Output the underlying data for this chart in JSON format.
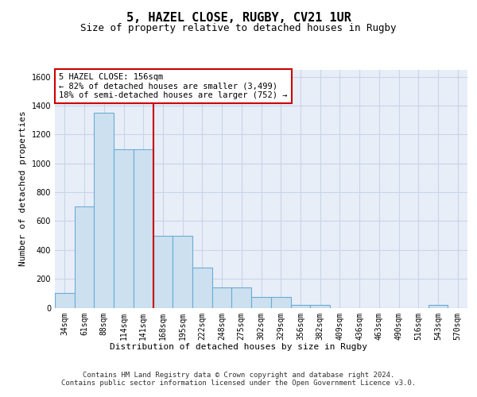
{
  "title": "5, HAZEL CLOSE, RUGBY, CV21 1UR",
  "subtitle": "Size of property relative to detached houses in Rugby",
  "xlabel": "Distribution of detached houses by size in Rugby",
  "ylabel": "Number of detached properties",
  "categories": [
    "34sqm",
    "61sqm",
    "88sqm",
    "114sqm",
    "141sqm",
    "168sqm",
    "195sqm",
    "222sqm",
    "248sqm",
    "275sqm",
    "302sqm",
    "329sqm",
    "356sqm",
    "382sqm",
    "409sqm",
    "436sqm",
    "463sqm",
    "490sqm",
    "516sqm",
    "543sqm",
    "570sqm"
  ],
  "values": [
    100,
    700,
    1350,
    1100,
    1100,
    500,
    500,
    280,
    140,
    140,
    75,
    75,
    20,
    20,
    0,
    0,
    0,
    0,
    0,
    20,
    0
  ],
  "bar_color": "#cde0f0",
  "bar_edge_color": "#6aacd4",
  "vline_color": "#cc0000",
  "annotation_text": "5 HAZEL CLOSE: 156sqm\n← 82% of detached houses are smaller (3,499)\n18% of semi-detached houses are larger (752) →",
  "annotation_box_color": "#ffffff",
  "annotation_box_edge": "#cc0000",
  "ylim": [
    0,
    1650
  ],
  "yticks": [
    0,
    200,
    400,
    600,
    800,
    1000,
    1200,
    1400,
    1600
  ],
  "background_color": "#e8eef8",
  "grid_color": "#c8d4e8",
  "footer_text": "Contains HM Land Registry data © Crown copyright and database right 2024.\nContains public sector information licensed under the Open Government Licence v3.0.",
  "title_fontsize": 11,
  "subtitle_fontsize": 9,
  "axis_label_fontsize": 8,
  "tick_fontsize": 7,
  "annotation_fontsize": 7.5,
  "ylabel_fontsize": 8
}
